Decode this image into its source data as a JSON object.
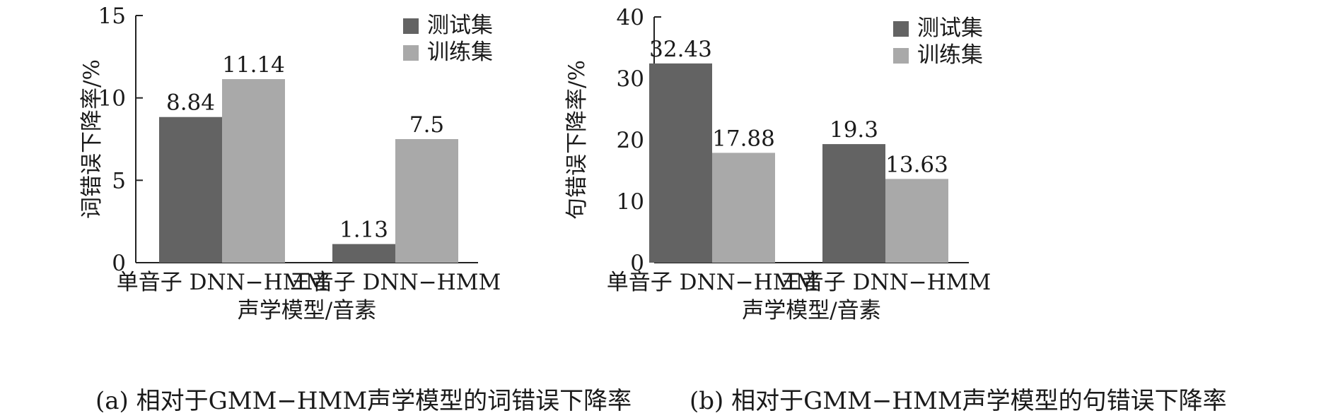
{
  "chart_data": [
    {
      "type": "bar",
      "caption": "(a) 相对于GMM−HMM声学模型的词错误下降率",
      "categories": [
        "单音子 DNN−HMM",
        "三音子 DNN−HMM"
      ],
      "series": [
        {
          "name": "测试集",
          "values": [
            8.84,
            1.13
          ],
          "labels": [
            "8.84",
            "1.13"
          ],
          "color": "#636363"
        },
        {
          "name": "训练集",
          "values": [
            11.14,
            7.5
          ],
          "labels": [
            "11.14",
            "7.5"
          ],
          "color": "#a9a9a9"
        }
      ],
      "xlabel": "声学模型/音素",
      "ylabel": "词错误下降率/%",
      "ylim": [
        0,
        15
      ],
      "yticks": [
        0,
        5,
        10,
        15
      ],
      "legend": "top-right",
      "grid": false
    },
    {
      "type": "bar",
      "caption": "(b) 相对于GMM−HMM声学模型的句错误下降率",
      "categories": [
        "单音子 DNN−HMM",
        "三音子 DNN−HMM"
      ],
      "series": [
        {
          "name": "测试集",
          "values": [
            32.43,
            19.3
          ],
          "labels": [
            "32.43",
            "19.3"
          ],
          "color": "#636363"
        },
        {
          "name": "训练集",
          "values": [
            17.88,
            13.63
          ],
          "labels": [
            "17.88",
            "13.63"
          ],
          "color": "#a9a9a9"
        }
      ],
      "xlabel": "声学模型/音素",
      "ylabel": "句错误下降率/%",
      "ylim": [
        0,
        40
      ],
      "yticks": [
        0,
        10,
        20,
        30,
        40
      ],
      "legend": "top-right",
      "grid": false
    }
  ]
}
